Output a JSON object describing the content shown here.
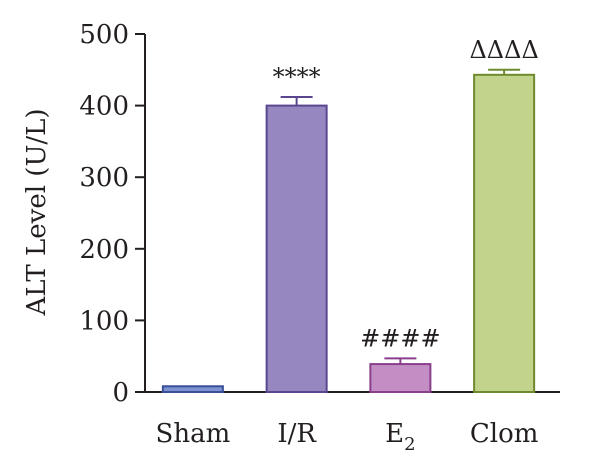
{
  "chart_data": {
    "type": "bar",
    "title": "",
    "xlabel": "",
    "ylabel": "ALT Level (U/L)",
    "ylim": [
      0,
      500
    ],
    "yticks": [
      0,
      100,
      200,
      300,
      400,
      500
    ],
    "categories": [
      {
        "name": "Sham",
        "label_main": "Sham",
        "label_sub": ""
      },
      {
        "name": "I/R",
        "label_main": "I/R",
        "label_sub": ""
      },
      {
        "name": "E2",
        "label_main": "E",
        "label_sub": "2"
      },
      {
        "name": "Clom",
        "label_main": "Clom",
        "label_sub": ""
      }
    ],
    "values": [
      8,
      400,
      39,
      443
    ],
    "errors": [
      0,
      12,
      8,
      7
    ],
    "annotations": [
      "",
      "****",
      "####",
      "ΔΔΔΔ"
    ],
    "fill_colors": [
      "#7b93d1",
      "#9687c1",
      "#c28ec4",
      "#c2d48c"
    ],
    "stroke_colors": [
      "#3a4f98",
      "#5a468f",
      "#8a3f8d",
      "#6e8a2f"
    ],
    "grid": false,
    "legend": "none"
  }
}
